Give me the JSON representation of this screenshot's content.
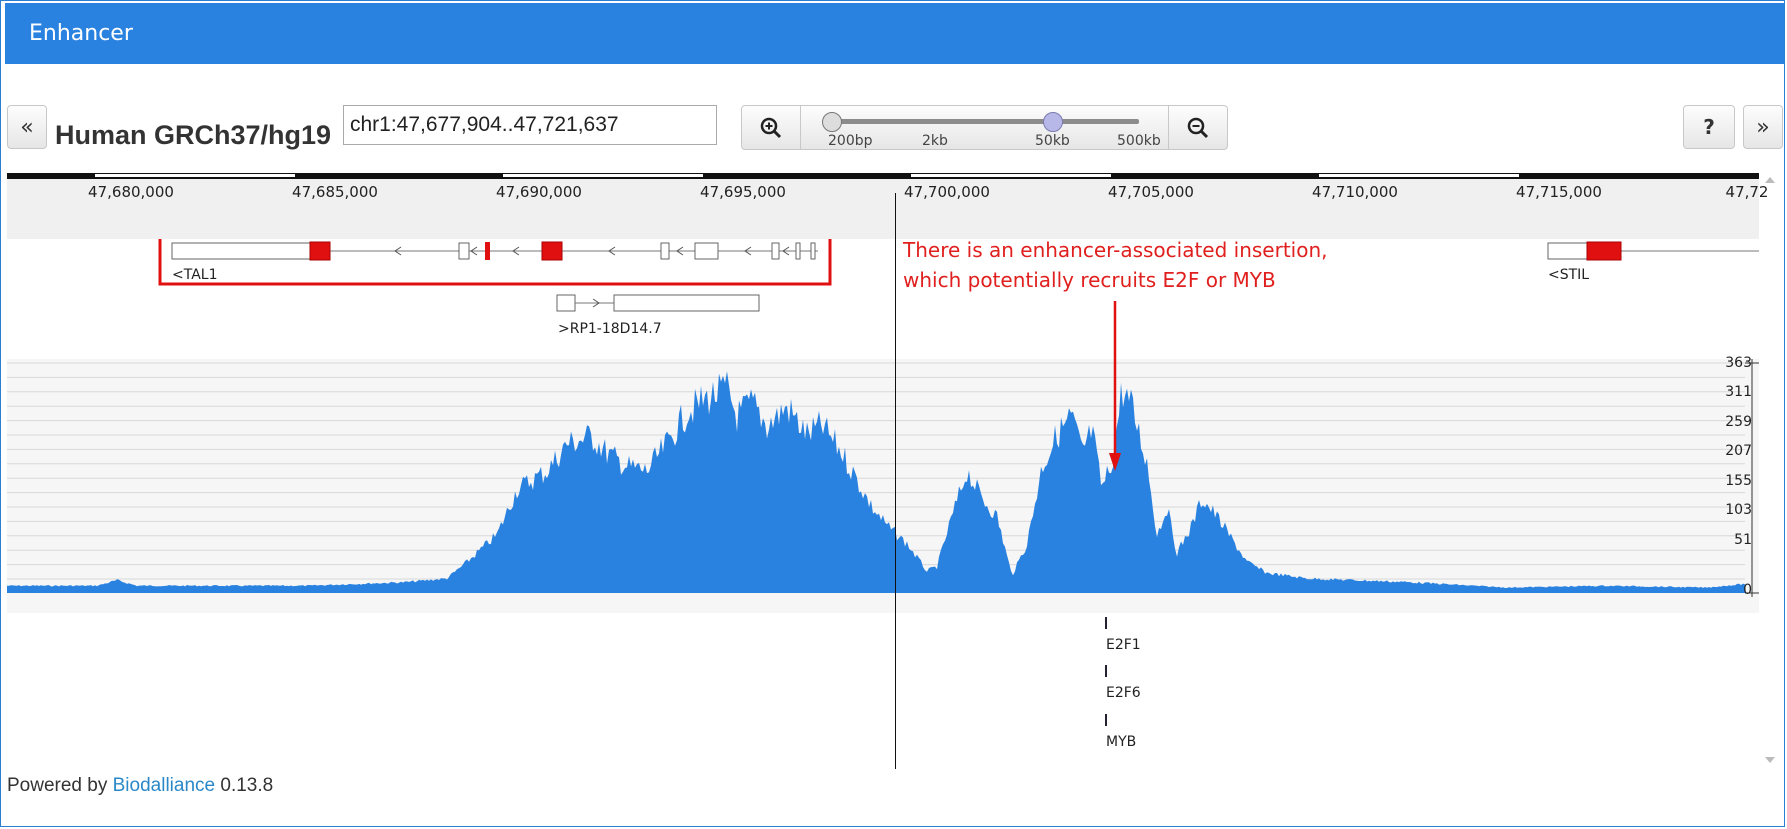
{
  "window": {
    "title": "Enhancer"
  },
  "toolbar": {
    "genome": "Human GRCh37/hg19",
    "location": "chr1:47,677,904..47,721,637",
    "left_label": "«",
    "right_label": "»",
    "help_label": "?",
    "zoom_labels": [
      "200bp",
      "2kb",
      "50kb",
      "500kb"
    ],
    "zoom_level_label": "50kb"
  },
  "ruler": {
    "labels": [
      "47,680,000",
      "47,685,000",
      "47,690,000",
      "47,695,000",
      "47,700,000",
      "47,705,000",
      "47,710,000",
      "47,715,000",
      "47,72"
    ]
  },
  "genes": [
    {
      "name": "<TAL1",
      "strand": "-"
    },
    {
      "name": ">RP1-18D14.7",
      "strand": "+"
    },
    {
      "name": "<STIL",
      "strand": "-"
    }
  ],
  "signal_track": {
    "y_ticks": [
      "363",
      "311",
      "259",
      "207",
      "155",
      "103",
      "51",
      "0"
    ],
    "color": "#2a82e0"
  },
  "tf_sites": [
    "E2F1",
    "E2F6",
    "MYB"
  ],
  "annotation": {
    "line1": "There is an enhancer-associated insertion,",
    "line2": "which potentially recruits E2F or MYB",
    "color": "#e0201e"
  },
  "footer": {
    "prefix": "Powered by",
    "link": "Biodalliance",
    "version": "0.13.8"
  }
}
